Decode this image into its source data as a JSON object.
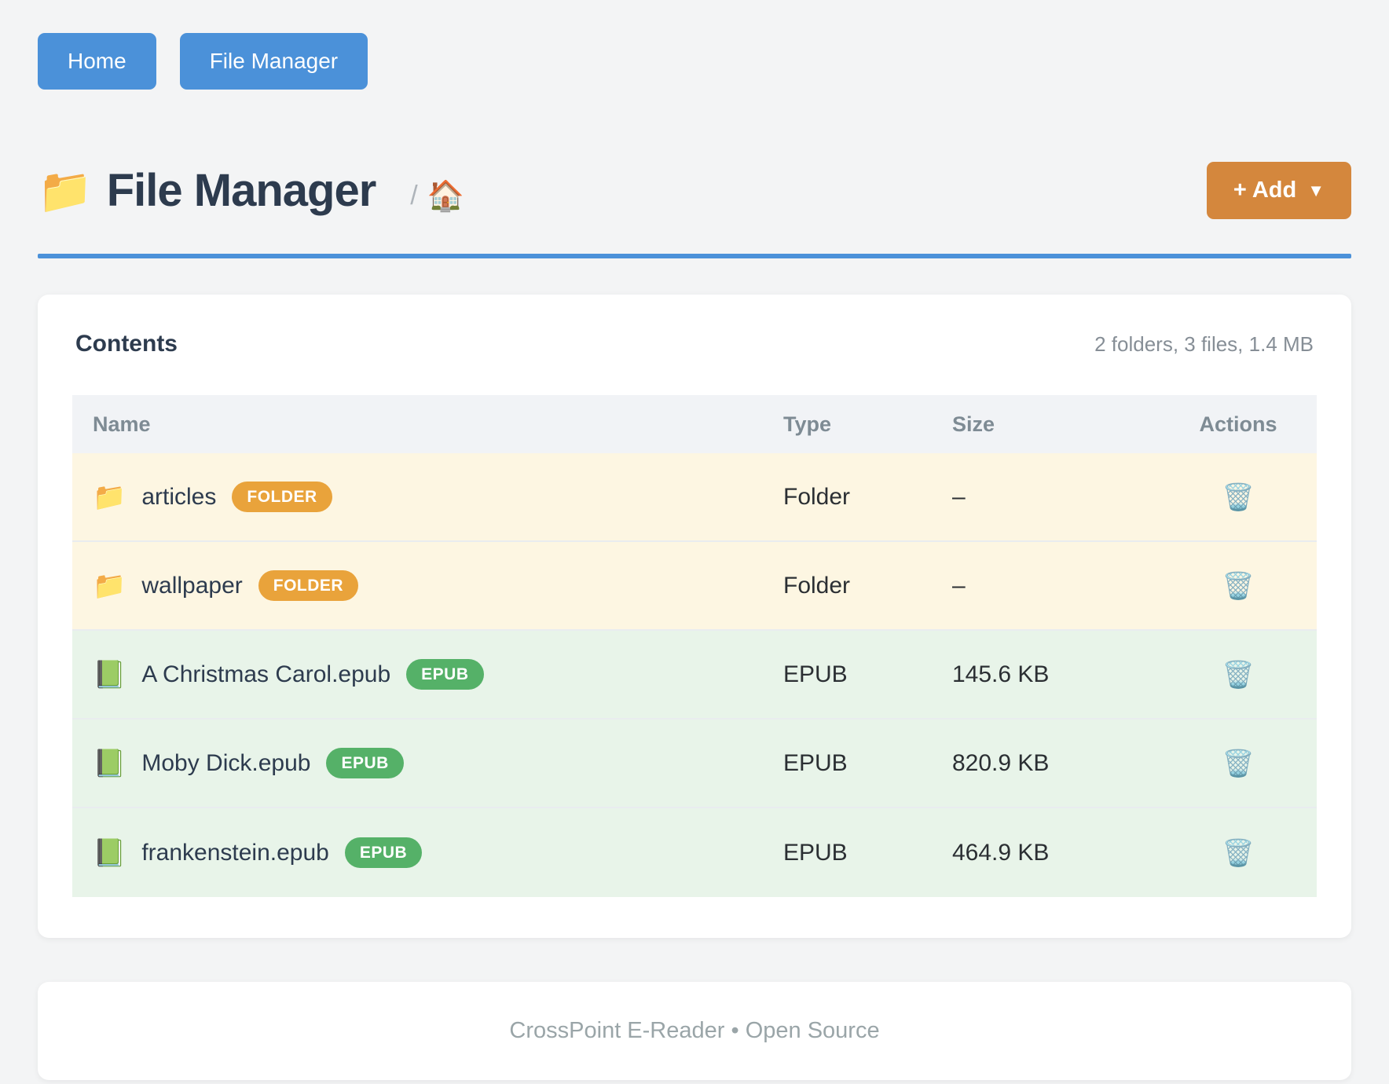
{
  "nav": {
    "home_label": "Home",
    "file_manager_label": "File Manager"
  },
  "header": {
    "title_icon": "📁",
    "title": "File Manager",
    "breadcrumb_separator": "/",
    "breadcrumb_home_icon": "🏠",
    "add_label": "+ Add",
    "add_caret": "▼"
  },
  "contents": {
    "title": "Contents",
    "summary": "2 folders, 3 files, 1.4 MB"
  },
  "table": {
    "columns": {
      "name": "Name",
      "type": "Type",
      "size": "Size",
      "actions": "Actions"
    },
    "action_icon": "🗑️",
    "rows": [
      {
        "icon": "📁",
        "name": "articles",
        "badge": "FOLDER",
        "kind": "folder",
        "type": "Folder",
        "size": "–"
      },
      {
        "icon": "📁",
        "name": "wallpaper",
        "badge": "FOLDER",
        "kind": "folder",
        "type": "Folder",
        "size": "–"
      },
      {
        "icon": "📗",
        "name": "A Christmas Carol.epub",
        "badge": "EPUB",
        "kind": "epub",
        "type": "EPUB",
        "size": "145.6 KB"
      },
      {
        "icon": "📗",
        "name": "Moby Dick.epub",
        "badge": "EPUB",
        "kind": "epub",
        "type": "EPUB",
        "size": "820.9 KB"
      },
      {
        "icon": "📗",
        "name": "frankenstein.epub",
        "badge": "EPUB",
        "kind": "epub",
        "type": "EPUB",
        "size": "464.9 KB"
      }
    ]
  },
  "footer": {
    "text": "CrossPoint E-Reader • Open Source"
  },
  "colors": {
    "accent_blue": "#4b91d9",
    "accent_orange": "#d4873d",
    "badge_folder": "#e9a33b",
    "badge_epub": "#55b168",
    "row_folder_bg": "#fdf6e2",
    "row_epub_bg": "#e8f4e9"
  }
}
